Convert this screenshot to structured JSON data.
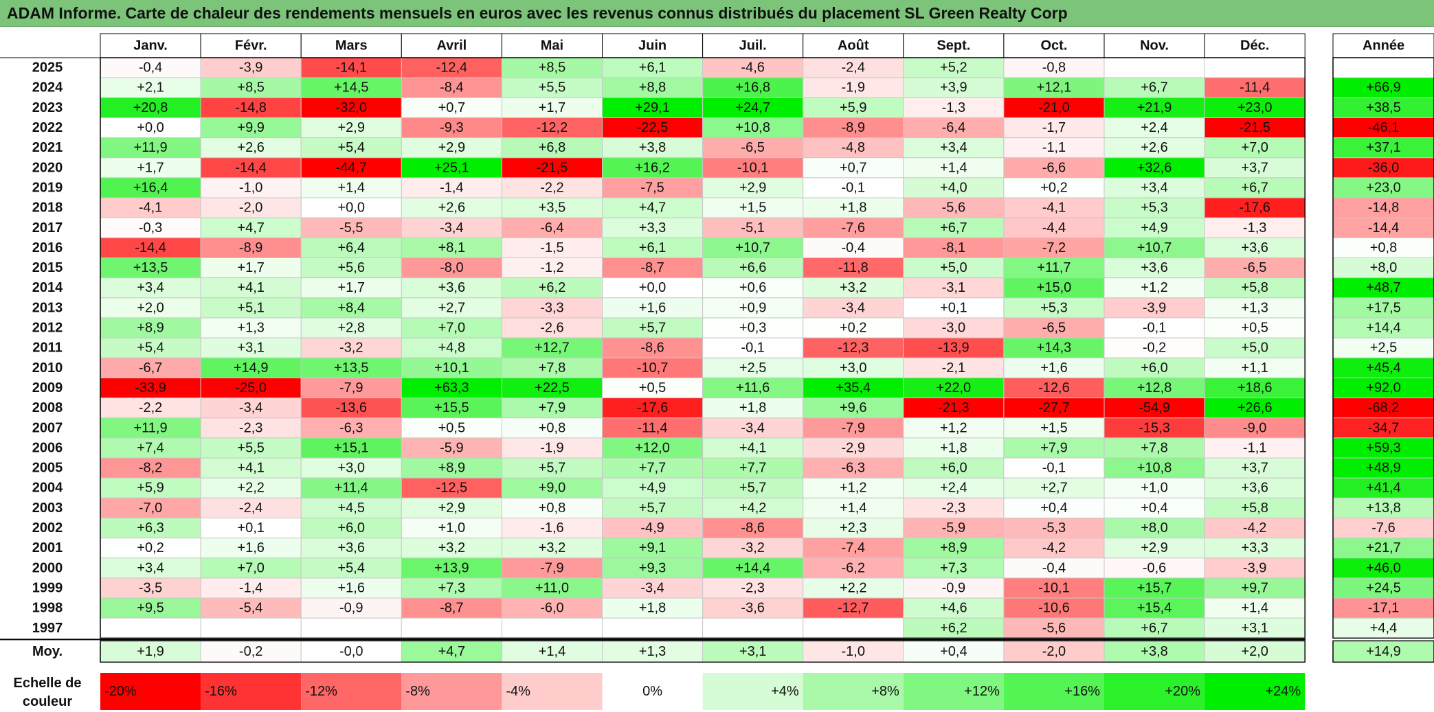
{
  "title": "ADAM Informe. Carte de chaleur des rendements mensuels en euros avec les revenus connus distribués du placement SL Green Realty Corp",
  "chart_data": {
    "type": "heatmap",
    "title": "ADAM Informe. Carte de chaleur des rendements mensuels en euros avec les revenus connus distribués du placement SL Green Realty Corp",
    "months": [
      "Janv.",
      "Févr.",
      "Mars",
      "Avril",
      "Mai",
      "Juin",
      "Juil.",
      "Août",
      "Sept.",
      "Oct.",
      "Nov.",
      "Déc."
    ],
    "annual_header": "Année",
    "rows": [
      {
        "year": "2025",
        "values": [
          "-0,4",
          "-3,9",
          "-14,1",
          "-12,4",
          "+8,5",
          "+6,1",
          "-4,6",
          "-2,4",
          "+5,2",
          "-0,8",
          "",
          ""
        ],
        "annual": ""
      },
      {
        "year": "2024",
        "values": [
          "+2,1",
          "+8,5",
          "+14,5",
          "-8,4",
          "+5,5",
          "+8,8",
          "+16,8",
          "-1,9",
          "+3,9",
          "+12,1",
          "+6,7",
          "-11,4"
        ],
        "annual": "+66,9"
      },
      {
        "year": "2023",
        "values": [
          "+20,8",
          "-14,8",
          "-32,0",
          "+0,7",
          "+1,7",
          "+29,1",
          "+24,7",
          "+5,9",
          "-1,3",
          "-21,0",
          "+21,9",
          "+23,0"
        ],
        "annual": "+38,5"
      },
      {
        "year": "2022",
        "values": [
          "+0,0",
          "+9,9",
          "+2,9",
          "-9,3",
          "-12,2",
          "-22,5",
          "+10,8",
          "-8,9",
          "-6,4",
          "-1,7",
          "+2,4",
          "-21,5"
        ],
        "annual": "-46,1"
      },
      {
        "year": "2021",
        "values": [
          "+11,9",
          "+2,6",
          "+5,4",
          "+2,9",
          "+6,8",
          "+3,8",
          "-6,5",
          "-4,8",
          "+3,4",
          "-1,1",
          "+2,6",
          "+7,0"
        ],
        "annual": "+37,1"
      },
      {
        "year": "2020",
        "values": [
          "+1,7",
          "-14,4",
          "-44,7",
          "+25,1",
          "-21,5",
          "+16,2",
          "-10,1",
          "+0,7",
          "+1,4",
          "-6,6",
          "+32,6",
          "+3,7"
        ],
        "annual": "-36,0"
      },
      {
        "year": "2019",
        "values": [
          "+16,4",
          "-1,0",
          "+1,4",
          "-1,4",
          "-2,2",
          "-7,5",
          "+2,9",
          "-0,1",
          "+4,0",
          "+0,2",
          "+3,4",
          "+6,7"
        ],
        "annual": "+23,0"
      },
      {
        "year": "2018",
        "values": [
          "-4,1",
          "-2,0",
          "+0,0",
          "+2,6",
          "+3,5",
          "+4,7",
          "+1,5",
          "+1,8",
          "-5,6",
          "-4,1",
          "+5,3",
          "-17,6"
        ],
        "annual": "-14,8"
      },
      {
        "year": "2017",
        "values": [
          "-0,3",
          "+4,7",
          "-5,5",
          "-3,4",
          "-6,4",
          "+3,3",
          "-5,1",
          "-7,6",
          "+6,7",
          "-4,4",
          "+4,9",
          "-1,3"
        ],
        "annual": "-14,4"
      },
      {
        "year": "2016",
        "values": [
          "-14,4",
          "-8,9",
          "+6,4",
          "+8,1",
          "-1,5",
          "+6,1",
          "+10,7",
          "-0,4",
          "-8,1",
          "-7,2",
          "+10,7",
          "+3,6"
        ],
        "annual": "+0,8"
      },
      {
        "year": "2015",
        "values": [
          "+13,5",
          "+1,7",
          "+5,6",
          "-8,0",
          "-1,2",
          "-8,7",
          "+6,6",
          "-11,8",
          "+5,0",
          "+11,7",
          "+3,6",
          "-6,5"
        ],
        "annual": "+8,0"
      },
      {
        "year": "2014",
        "values": [
          "+3,4",
          "+4,1",
          "+1,7",
          "+3,6",
          "+6,2",
          "+0,0",
          "+0,6",
          "+3,2",
          "-3,1",
          "+15,0",
          "+1,2",
          "+5,8"
        ],
        "annual": "+48,7"
      },
      {
        "year": "2013",
        "values": [
          "+2,0",
          "+5,1",
          "+8,4",
          "+2,7",
          "-3,3",
          "+1,6",
          "+0,9",
          "-3,4",
          "+0,1",
          "+5,3",
          "-3,9",
          "+1,3"
        ],
        "annual": "+17,5"
      },
      {
        "year": "2012",
        "values": [
          "+8,9",
          "+1,3",
          "+2,8",
          "+7,0",
          "-2,6",
          "+5,7",
          "+0,3",
          "+0,2",
          "-3,0",
          "-6,5",
          "-0,1",
          "+0,5"
        ],
        "annual": "+14,4"
      },
      {
        "year": "2011",
        "values": [
          "+5,4",
          "+3,1",
          "-3,2",
          "+4,8",
          "+12,7",
          "-8,6",
          "-0,1",
          "-12,3",
          "-13,9",
          "+14,3",
          "-0,2",
          "+5,0"
        ],
        "annual": "+2,5"
      },
      {
        "year": "2010",
        "values": [
          "-6,7",
          "+14,9",
          "+13,5",
          "+10,1",
          "+7,8",
          "-10,7",
          "+2,5",
          "+3,0",
          "-2,1",
          "+1,6",
          "+6,0",
          "+1,1"
        ],
        "annual": "+45,4"
      },
      {
        "year": "2009",
        "values": [
          "-33,9",
          "-25,0",
          "-7,9",
          "+63,3",
          "+22,5",
          "+0,5",
          "+11,6",
          "+35,4",
          "+22,0",
          "-12,6",
          "+12,8",
          "+18,6"
        ],
        "annual": "+92,0"
      },
      {
        "year": "2008",
        "values": [
          "-2,2",
          "-3,4",
          "-13,6",
          "+15,5",
          "+7,9",
          "-17,6",
          "+1,8",
          "+9,6",
          "-21,3",
          "-27,7",
          "-54,9",
          "+26,6"
        ],
        "annual": "-68,2"
      },
      {
        "year": "2007",
        "values": [
          "+11,9",
          "-2,3",
          "-6,3",
          "+0,5",
          "+0,8",
          "-11,4",
          "-3,4",
          "-7,9",
          "+1,2",
          "+1,5",
          "-15,3",
          "-9,0"
        ],
        "annual": "-34,7"
      },
      {
        "year": "2006",
        "values": [
          "+7,4",
          "+5,5",
          "+15,1",
          "-5,9",
          "-1,9",
          "+12,0",
          "+4,1",
          "-2,9",
          "+1,8",
          "+7,9",
          "+7,8",
          "-1,1"
        ],
        "annual": "+59,3"
      },
      {
        "year": "2005",
        "values": [
          "-8,2",
          "+4,1",
          "+3,0",
          "+8,9",
          "+5,7",
          "+7,7",
          "+7,7",
          "-6,3",
          "+6,0",
          "-0,1",
          "+10,8",
          "+3,7"
        ],
        "annual": "+48,9"
      },
      {
        "year": "2004",
        "values": [
          "+5,9",
          "+2,2",
          "+11,4",
          "-12,5",
          "+9,0",
          "+4,9",
          "+5,7",
          "+1,2",
          "+2,4",
          "+2,7",
          "+1,0",
          "+3,6"
        ],
        "annual": "+41,4"
      },
      {
        "year": "2003",
        "values": [
          "-7,0",
          "-2,4",
          "+4,5",
          "+2,9",
          "+0,8",
          "+5,7",
          "+4,2",
          "+1,4",
          "-2,3",
          "+0,4",
          "+0,4",
          "+5,8"
        ],
        "annual": "+13,8"
      },
      {
        "year": "2002",
        "values": [
          "+6,3",
          "+0,1",
          "+6,0",
          "+1,0",
          "-1,6",
          "-4,9",
          "-8,6",
          "+2,3",
          "-5,9",
          "-5,3",
          "+8,0",
          "-4,2"
        ],
        "annual": "-7,6"
      },
      {
        "year": "2001",
        "values": [
          "+0,2",
          "+1,6",
          "+3,6",
          "+3,2",
          "+3,2",
          "+9,1",
          "-3,2",
          "-7,4",
          "+8,9",
          "-4,2",
          "+2,9",
          "+3,3"
        ],
        "annual": "+21,7"
      },
      {
        "year": "2000",
        "values": [
          "+3,4",
          "+7,0",
          "+5,4",
          "+13,9",
          "-7,9",
          "+9,3",
          "+14,4",
          "-6,2",
          "+7,3",
          "-0,4",
          "-0,6",
          "-3,9"
        ],
        "annual": "+46,0"
      },
      {
        "year": "1999",
        "values": [
          "-3,5",
          "-1,4",
          "+1,6",
          "+7,3",
          "+11,0",
          "-3,4",
          "-2,3",
          "+2,2",
          "-0,9",
          "-10,1",
          "+15,7",
          "+9,7"
        ],
        "annual": "+24,5"
      },
      {
        "year": "1998",
        "values": [
          "+9,5",
          "-5,4",
          "-0,9",
          "-8,7",
          "-6,0",
          "+1,8",
          "-3,6",
          "-12,7",
          "+4,6",
          "-10,6",
          "+15,4",
          "+1,4"
        ],
        "annual": "-17,1"
      },
      {
        "year": "1997",
        "values": [
          "",
          "",
          "",
          "",
          "",
          "",
          "",
          "",
          "+6,2",
          "-5,6",
          "+6,7",
          "+3,1"
        ],
        "annual": "+4,4"
      }
    ],
    "average": {
      "label": "Moy.",
      "values": [
        "+1,9",
        "-0,2",
        "-0,0",
        "+4,7",
        "+1,4",
        "+1,3",
        "+3,1",
        "-1,0",
        "+0,4",
        "-2,0",
        "+3,8",
        "+2,0"
      ],
      "annual": "+14,9"
    },
    "color_scale": {
      "label": "Echelle de couleur",
      "low_color": "#ff0000",
      "mid_color": "#ffffff",
      "high_color": "#00ee00",
      "steps": [
        {
          "label": "-20%",
          "value": -20
        },
        {
          "label": "-16%",
          "value": -16
        },
        {
          "label": "-12%",
          "value": -12
        },
        {
          "label": "-8%",
          "value": -8
        },
        {
          "label": "-4%",
          "value": -4
        },
        {
          "label": "0%",
          "value": 0
        },
        {
          "label": "+4%",
          "value": 4
        },
        {
          "label": "+8%",
          "value": 8
        },
        {
          "label": "+12%",
          "value": 12
        },
        {
          "label": "+16%",
          "value": 16
        },
        {
          "label": "+20%",
          "value": 20
        },
        {
          "label": "+24%",
          "value": 24
        }
      ]
    }
  }
}
